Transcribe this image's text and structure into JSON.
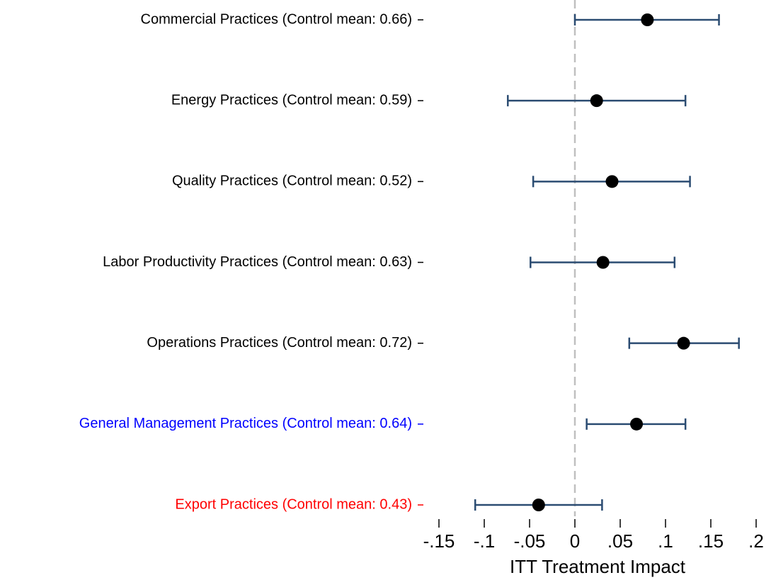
{
  "chart_data": {
    "type": "coefplot",
    "categories": [
      "Commercial Practices (Control mean: 0.66)",
      "Energy Practices (Control mean: 0.59)",
      "Quality Practices (Control mean: 0.52)",
      "Labor Productivity Practices (Control mean: 0.63)",
      "Operations Practices (Control mean: 0.72)",
      "General Management Practices (Control mean: 0.64)",
      "Export Practices (Control mean: 0.43)"
    ],
    "label_colors": [
      "#000000",
      "#000000",
      "#000000",
      "#000000",
      "#000000",
      "#0000ff",
      "#ff0000"
    ],
    "values": [
      0.08,
      0.024,
      0.041,
      0.031,
      0.12,
      0.068,
      -0.04
    ],
    "ci_low": [
      0.0,
      -0.074,
      -0.046,
      -0.049,
      0.06,
      0.013,
      -0.11
    ],
    "ci_high": [
      0.159,
      0.122,
      0.127,
      0.11,
      0.181,
      0.122,
      0.03
    ],
    "color": "#000000",
    "ci_color": "#2b4c72",
    "refline": 0,
    "refline_color": "#c0c0c0",
    "x_label": "ITT Treatment Impact",
    "xlim": [
      -0.15,
      0.2
    ],
    "xticks": [
      {
        "value": -0.15,
        "label": "-.15"
      },
      {
        "value": -0.1,
        "label": "-.1"
      },
      {
        "value": -0.05,
        "label": "-.05"
      },
      0,
      {
        "value": 0.05,
        "label": ".05"
      },
      {
        "value": 0.1,
        "label": ".1"
      },
      {
        "value": 0.15,
        "label": ".15"
      },
      {
        "value": 0.2,
        "label": ".2"
      }
    ]
  }
}
